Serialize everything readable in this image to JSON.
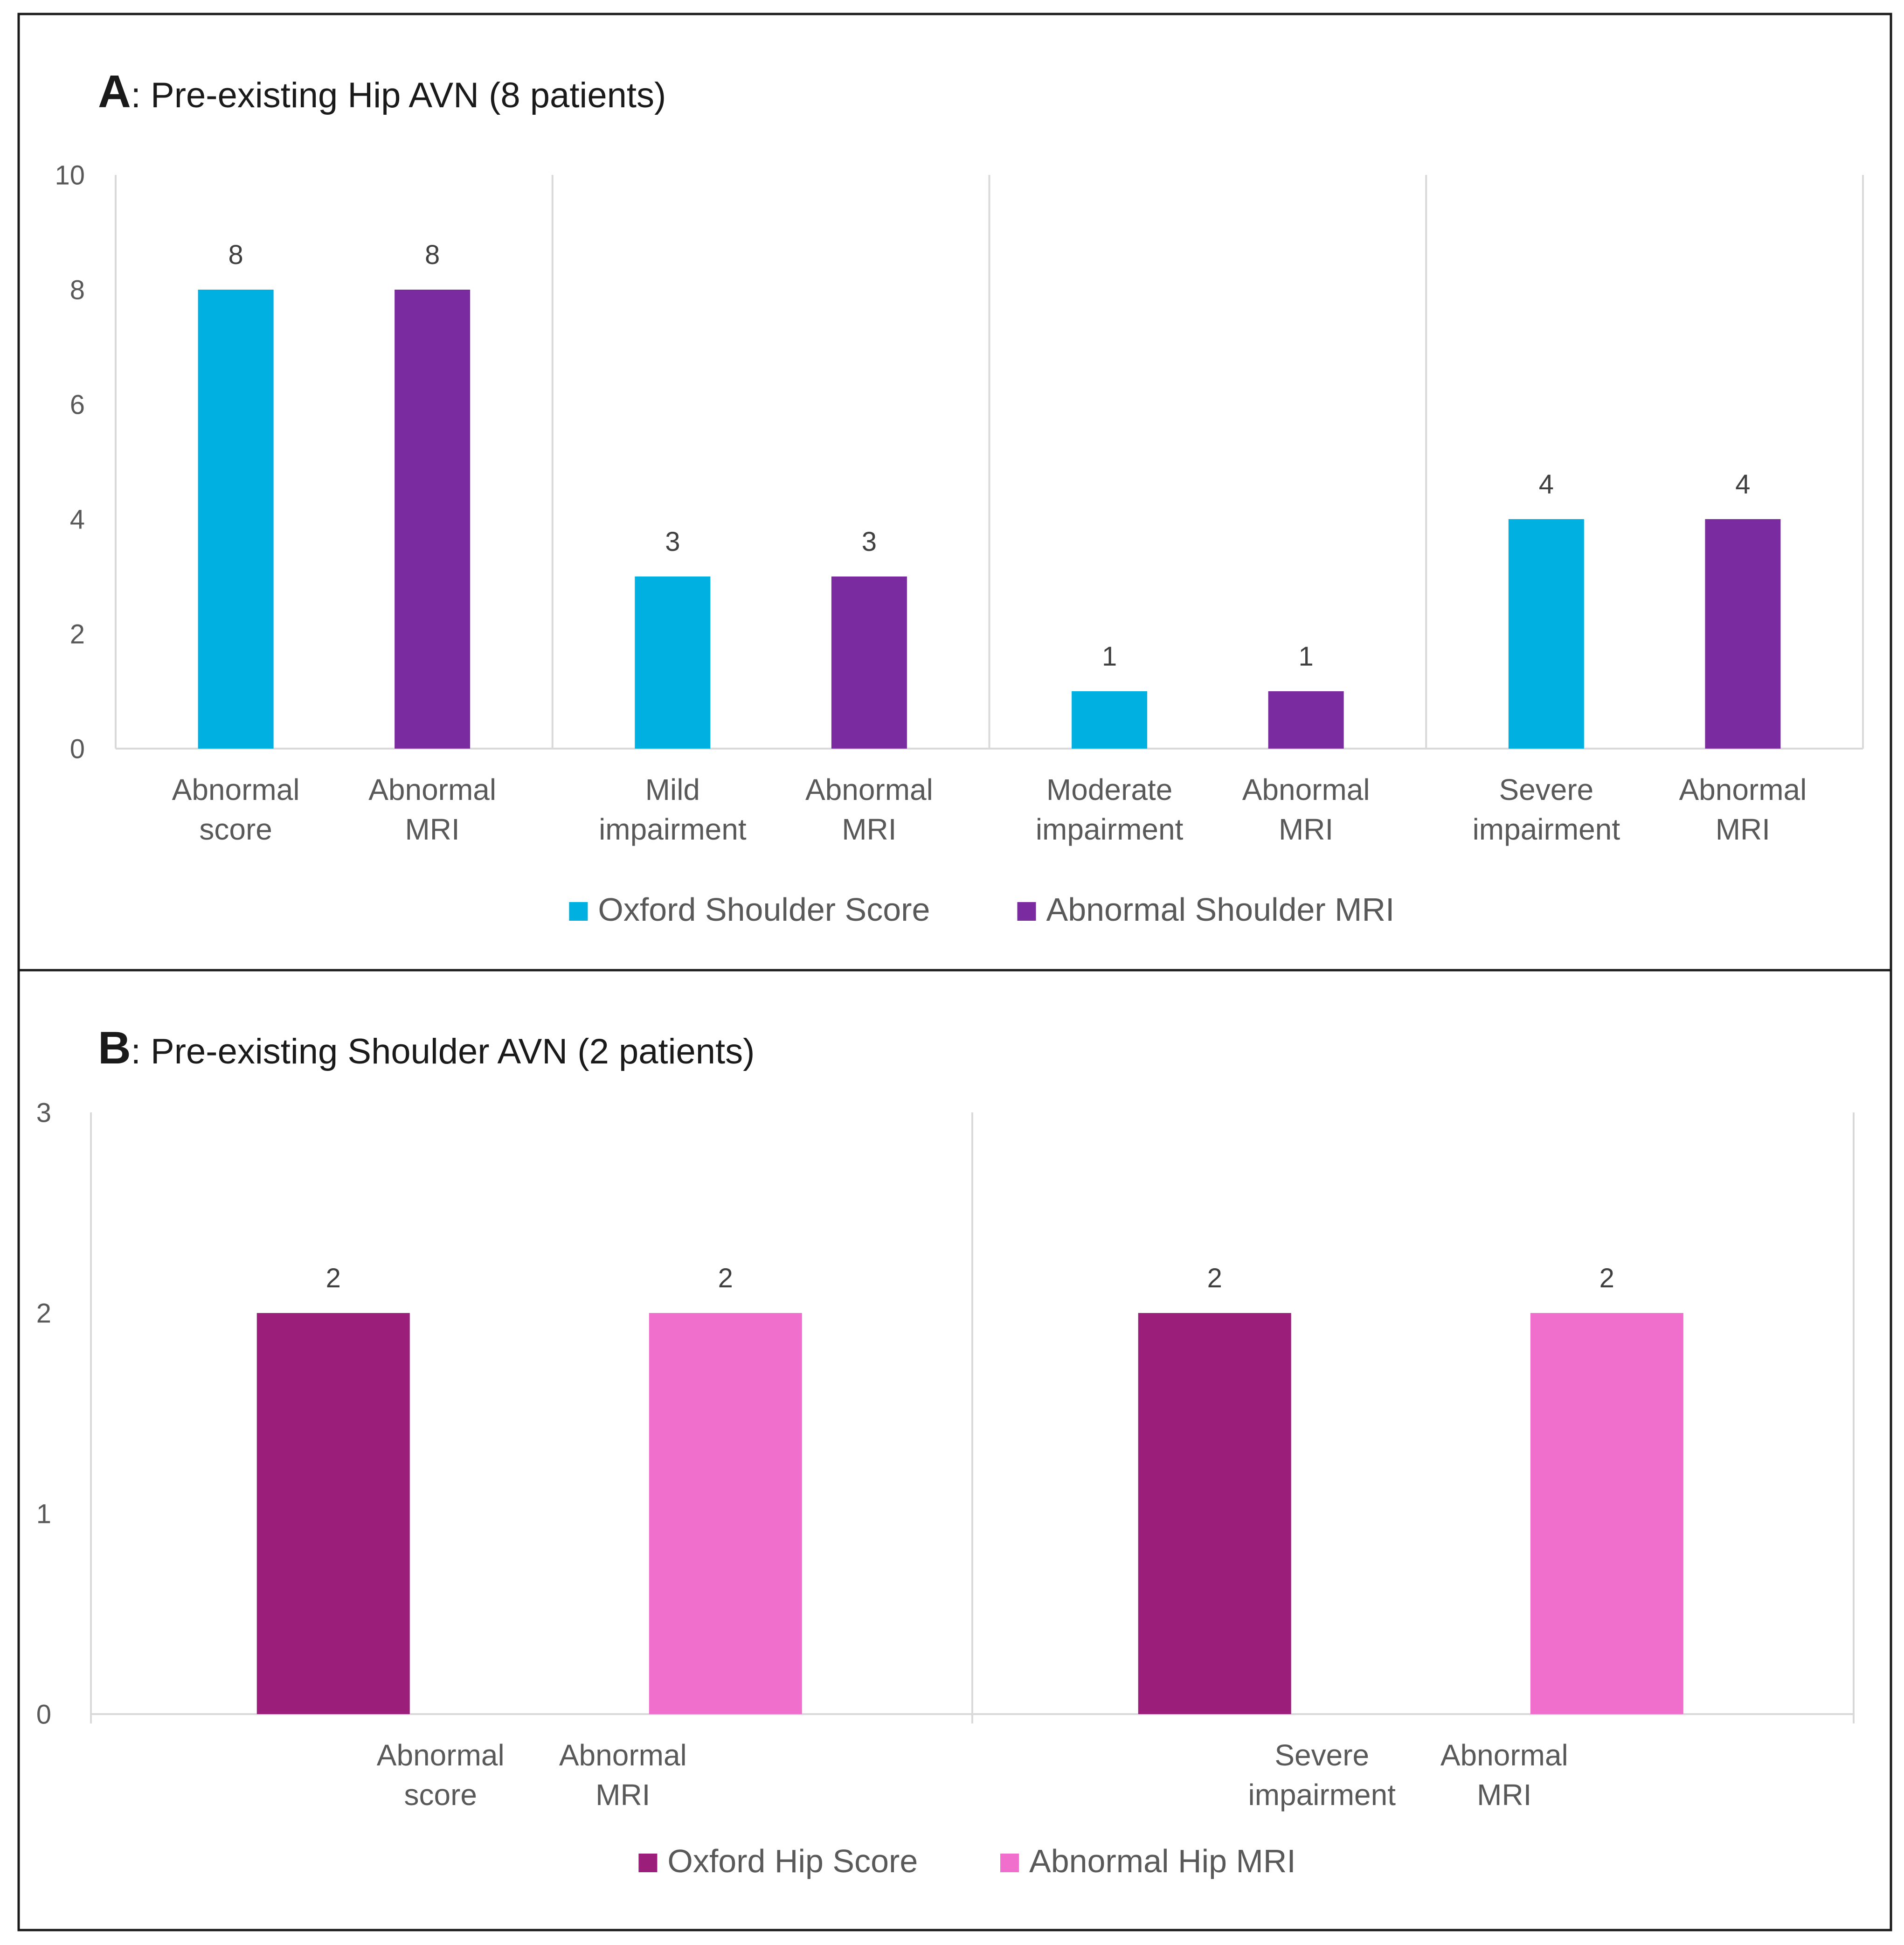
{
  "colors": {
    "panel_border": "#1a1a1a",
    "gridline": "#d9d9d9",
    "axis_text": "#595959",
    "title_text": "#1a1a1a",
    "label_text": "#404040"
  },
  "chart_data": [
    {
      "type": "bar",
      "panel_letter": "A",
      "title": ": Pre-existing Hip AVN (8 patients)",
      "ylim": [
        0,
        10
      ],
      "yticks": [
        0,
        2,
        4,
        6,
        8,
        10
      ],
      "grid": false,
      "legend_position": "bottom",
      "groups": [
        {
          "bars": [
            {
              "label": [
                "Abnormal",
                "score"
              ],
              "value": 8,
              "series": 0
            },
            {
              "label": [
                "Abnormal",
                "MRI"
              ],
              "value": 8,
              "series": 1
            }
          ]
        },
        {
          "bars": [
            {
              "label": [
                "Mild",
                "impairment"
              ],
              "value": 3,
              "series": 0
            },
            {
              "label": [
                "Abnormal",
                "MRI"
              ],
              "value": 3,
              "series": 1
            }
          ]
        },
        {
          "bars": [
            {
              "label": [
                "Moderate",
                "impairment"
              ],
              "value": 1,
              "series": 0
            },
            {
              "label": [
                "Abnormal",
                "MRI"
              ],
              "value": 1,
              "series": 1
            }
          ]
        },
        {
          "bars": [
            {
              "label": [
                "Severe",
                "impairment"
              ],
              "value": 4,
              "series": 0
            },
            {
              "label": [
                "Abnormal",
                "MRI"
              ],
              "value": 4,
              "series": 1
            }
          ]
        }
      ],
      "series": [
        {
          "name": "Oxford Shoulder Score",
          "color": "#00b0e0"
        },
        {
          "name": "Abnormal Shoulder MRI",
          "color": "#7b2ba0"
        }
      ]
    },
    {
      "type": "bar",
      "panel_letter": "B",
      "title": ": Pre-existing Shoulder AVN (2 patients)",
      "ylim": [
        0,
        3
      ],
      "yticks": [
        0,
        1,
        2,
        3
      ],
      "grid": false,
      "legend_position": "bottom",
      "groups": [
        {
          "bars": [
            {
              "label": [
                "Abnormal",
                "score"
              ],
              "value": 2,
              "series": 0
            },
            {
              "label": [
                "Abnormal",
                "MRI"
              ],
              "value": 2,
              "series": 1
            }
          ]
        },
        {
          "bars": [
            {
              "label": [
                "Severe",
                "impairment"
              ],
              "value": 2,
              "series": 0
            },
            {
              "label": [
                "Abnormal",
                "MRI"
              ],
              "value": 2,
              "series": 1
            }
          ]
        }
      ],
      "series": [
        {
          "name": "Oxford Hip Score",
          "color": "#9b1e7b"
        },
        {
          "name": "Abnormal Hip MRI",
          "color": "#f06ecc"
        }
      ]
    }
  ]
}
